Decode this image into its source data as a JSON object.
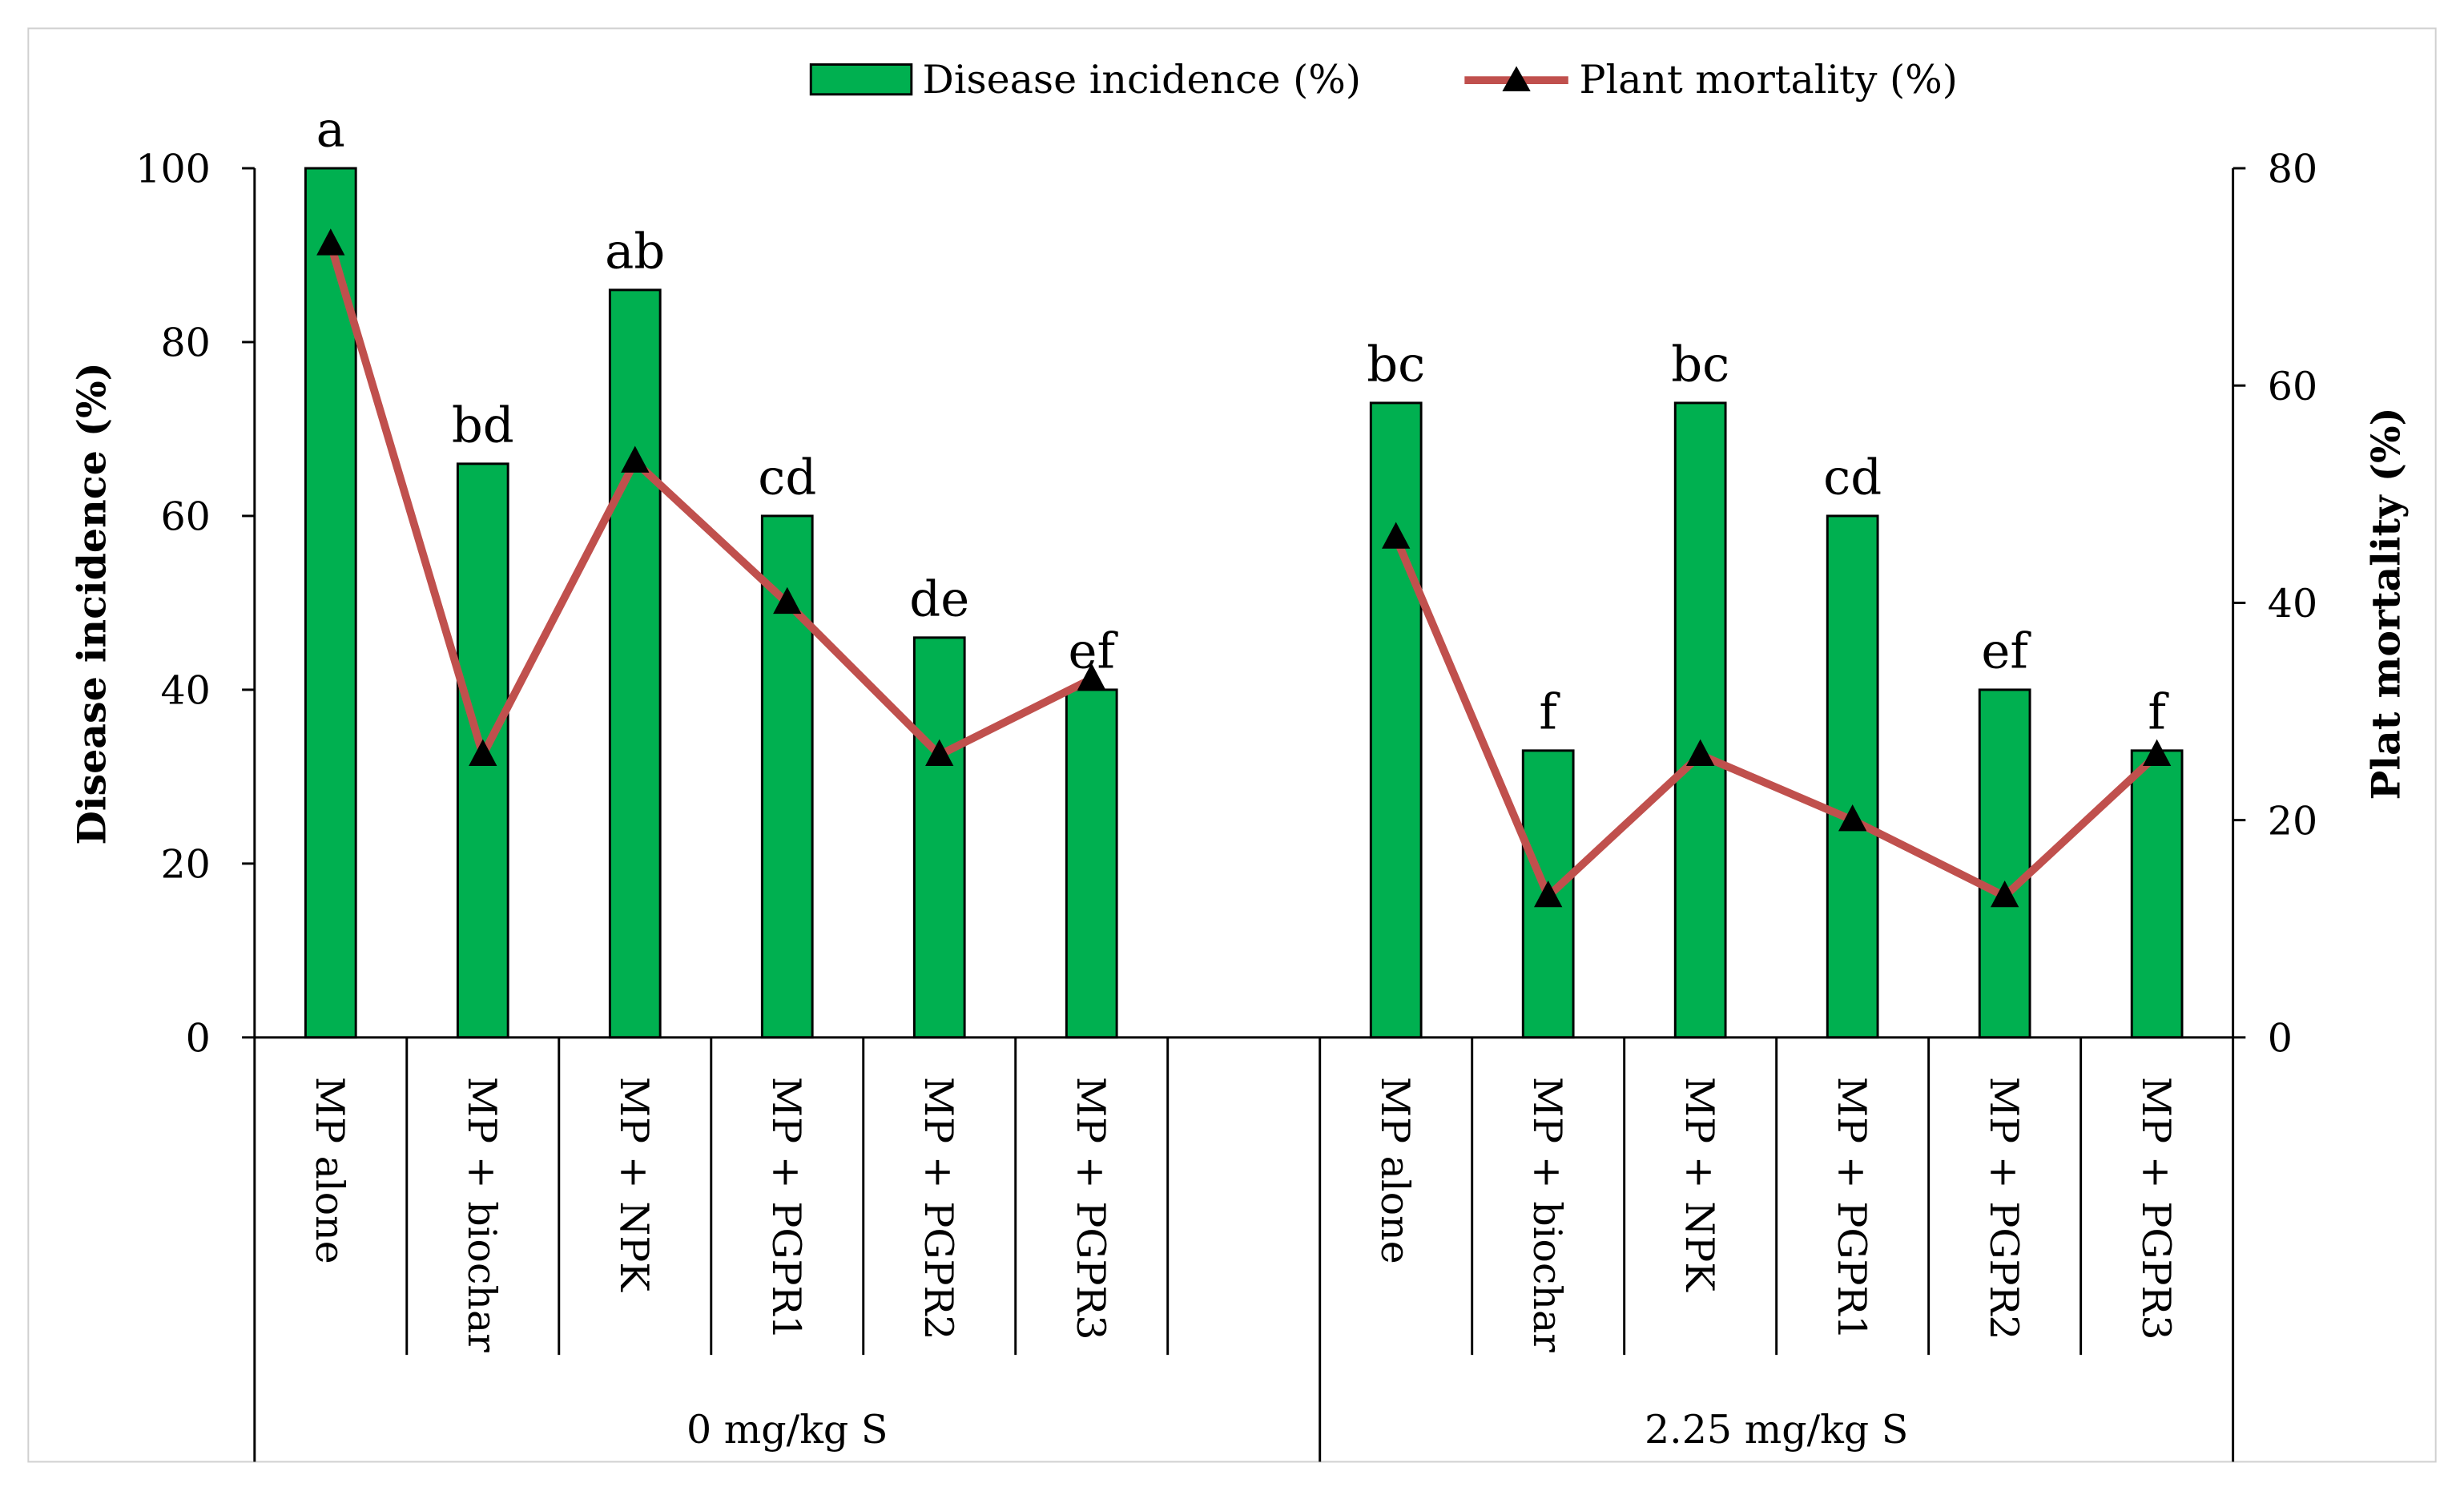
{
  "chart_data": {
    "type": "bar+line",
    "categories": [
      "MP alone",
      "MP + biochar",
      "MP + NPK",
      "MP + PGPR1",
      "MP + PGPR2",
      "MP + PGPR3"
    ],
    "groups": [
      {
        "label": "0 mg/kg S",
        "disease_incidence": [
          100,
          66,
          86,
          60,
          46,
          40
        ],
        "plant_mortality": [
          73,
          26,
          53,
          40,
          26,
          33
        ],
        "letters": [
          "a",
          "bd",
          "ab",
          "cd",
          "de",
          "ef"
        ]
      },
      {
        "label": "2.25 mg/kg S",
        "disease_incidence": [
          73,
          33,
          73,
          60,
          40,
          33
        ],
        "plant_mortality": [
          46,
          13,
          26,
          20,
          13,
          26
        ],
        "letters": [
          "bc",
          "f",
          "bc",
          "cd",
          "ef",
          "f"
        ]
      }
    ],
    "series": [
      {
        "name": "Disease incidence (%)",
        "type": "bar",
        "axis": "left",
        "color": "#00B050"
      },
      {
        "name": "Plant mortality (%)",
        "type": "line",
        "axis": "right",
        "color": "#C0504D",
        "marker": "triangle"
      }
    ],
    "ylabel": "Disease incidence (%)",
    "y2label": "Plat mortality (%)",
    "ylim": [
      0,
      100
    ],
    "y2lim": [
      0,
      80
    ],
    "yticks": [
      0,
      20,
      40,
      60,
      80,
      100
    ],
    "y2ticks": [
      0,
      20,
      40,
      60,
      80
    ],
    "legend": "top-center",
    "grid": false
  }
}
